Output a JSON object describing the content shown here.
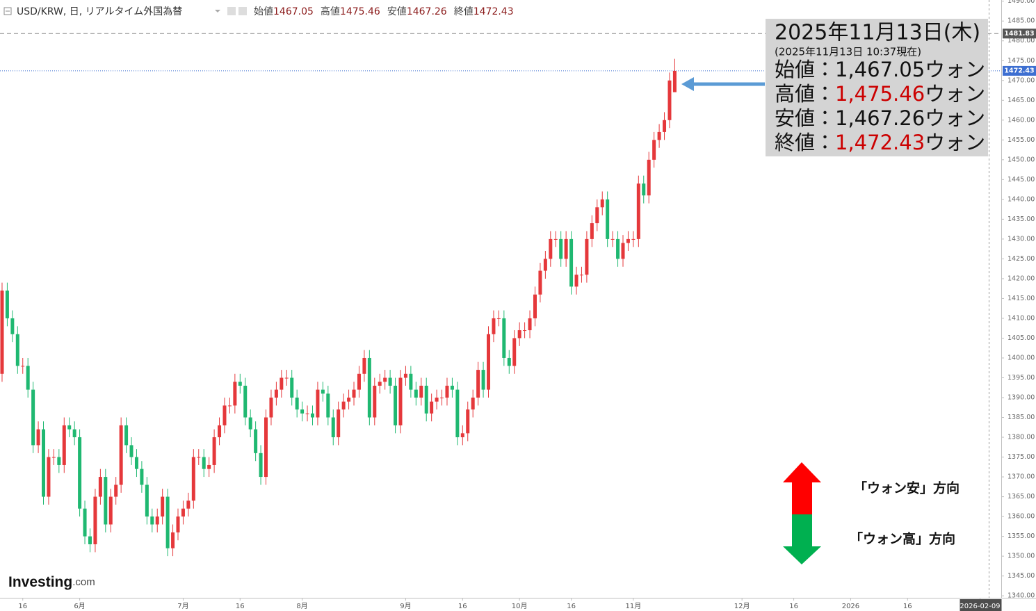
{
  "chart_data": {
    "type": "candlestick",
    "header": {
      "symbol": "USD/KRW, 日, リアルタイム外国為替",
      "ohlc_labels": [
        "始値",
        "高値",
        "安値",
        "終値"
      ]
    },
    "open": [
      1396,
      1417,
      1410,
      1406,
      1398,
      1398,
      1392,
      1378,
      1382,
      1365,
      1375,
      1375,
      1373,
      1383,
      1382,
      1380,
      1362,
      1355,
      1353,
      1365,
      1370,
      1358,
      1365,
      1368,
      1383,
      1378,
      1375,
      1372,
      1368,
      1360,
      1358,
      1360,
      1365,
      1352,
      1356,
      1360,
      1362,
      1364,
      1375,
      1375,
      1372,
      1373,
      1380,
      1383,
      1388,
      1388,
      1394,
      1393,
      1385,
      1382,
      1376,
      1370,
      1385,
      1390,
      1392,
      1395,
      1395,
      1390,
      1387,
      1386,
      1386,
      1385,
      1392,
      1391,
      1385,
      1380,
      1387,
      1389,
      1390,
      1392,
      1396,
      1400,
      1385,
      1393,
      1394,
      1395,
      1393,
      1383,
      1395,
      1396,
      1392,
      1390,
      1393,
      1386,
      1389,
      1390,
      1390,
      1393,
      1392,
      1380,
      1381,
      1387,
      1390,
      1397,
      1392,
      1406,
      1410,
      1410,
      1400,
      1398,
      1405,
      1407,
      1407,
      1410,
      1416,
      1422,
      1425,
      1430,
      1430,
      1425,
      1430,
      1418,
      1421,
      1421,
      1430,
      1434,
      1438,
      1440,
      1430,
      1430,
      1425,
      1429,
      1430,
      1430,
      1444,
      1441,
      1450,
      1455,
      1457,
      1460,
      1467.05
    ],
    "high": [
      1419,
      1419,
      1412,
      1408,
      1400,
      1400,
      1394,
      1384,
      1384,
      1377,
      1377,
      1377,
      1385,
      1385,
      1384,
      1382,
      1364,
      1357,
      1367,
      1372,
      1372,
      1367,
      1370,
      1385,
      1385,
      1380,
      1377,
      1374,
      1370,
      1362,
      1362,
      1367,
      1367,
      1358,
      1362,
      1364,
      1366,
      1377,
      1377,
      1377,
      1375,
      1382,
      1385,
      1390,
      1390,
      1396,
      1396,
      1395,
      1387,
      1384,
      1378,
      1387,
      1392,
      1394,
      1397,
      1397,
      1397,
      1392,
      1389,
      1388,
      1388,
      1394,
      1394,
      1393,
      1387,
      1389,
      1391,
      1392,
      1394,
      1398,
      1402,
      1402,
      1395,
      1396,
      1397,
      1397,
      1395,
      1397,
      1398,
      1398,
      1394,
      1395,
      1395,
      1391,
      1392,
      1392,
      1395,
      1395,
      1394,
      1383,
      1389,
      1392,
      1399,
      1399,
      1408,
      1412,
      1412,
      1412,
      1402,
      1407,
      1409,
      1409,
      1412,
      1418,
      1424,
      1427,
      1432,
      1432,
      1432,
      1432,
      1432,
      1423,
      1423,
      1432,
      1436,
      1440,
      1442,
      1442,
      1432,
      1432,
      1431,
      1432,
      1432,
      1446,
      1446,
      1452,
      1457,
      1459,
      1462,
      1472,
      1475.46
    ],
    "low": [
      1394,
      1408,
      1404,
      1396,
      1396,
      1390,
      1376,
      1376,
      1363,
      1363,
      1373,
      1371,
      1371,
      1380,
      1378,
      1360,
      1353,
      1351,
      1351,
      1363,
      1356,
      1356,
      1363,
      1366,
      1376,
      1373,
      1370,
      1366,
      1358,
      1356,
      1356,
      1358,
      1350,
      1350,
      1354,
      1358,
      1360,
      1362,
      1373,
      1370,
      1370,
      1371,
      1378,
      1381,
      1386,
      1386,
      1391,
      1383,
      1380,
      1374,
      1368,
      1368,
      1383,
      1388,
      1390,
      1393,
      1388,
      1385,
      1384,
      1384,
      1383,
      1383,
      1389,
      1383,
      1378,
      1378,
      1385,
      1387,
      1388,
      1390,
      1394,
      1383,
      1383,
      1391,
      1392,
      1391,
      1381,
      1381,
      1393,
      1390,
      1388,
      1388,
      1384,
      1384,
      1387,
      1388,
      1388,
      1390,
      1378,
      1378,
      1379,
      1385,
      1388,
      1390,
      1390,
      1404,
      1408,
      1398,
      1396,
      1396,
      1403,
      1405,
      1405,
      1408,
      1414,
      1420,
      1423,
      1428,
      1423,
      1423,
      1416,
      1416,
      1419,
      1419,
      1428,
      1432,
      1436,
      1428,
      1428,
      1423,
      1423,
      1427,
      1428,
      1428,
      1439,
      1439,
      1448,
      1453,
      1455,
      1458,
      1467.26
    ],
    "close": [
      1417,
      1410,
      1406,
      1398,
      1398,
      1392,
      1378,
      1382,
      1365,
      1375,
      1375,
      1373,
      1383,
      1382,
      1380,
      1362,
      1355,
      1353,
      1365,
      1370,
      1358,
      1365,
      1368,
      1383,
      1378,
      1375,
      1372,
      1368,
      1360,
      1358,
      1360,
      1365,
      1352,
      1356,
      1360,
      1362,
      1364,
      1375,
      1375,
      1372,
      1373,
      1380,
      1383,
      1388,
      1388,
      1394,
      1393,
      1385,
      1382,
      1376,
      1370,
      1385,
      1390,
      1392,
      1395,
      1395,
      1390,
      1387,
      1386,
      1386,
      1385,
      1392,
      1391,
      1385,
      1380,
      1387,
      1389,
      1390,
      1392,
      1396,
      1400,
      1385,
      1393,
      1394,
      1395,
      1393,
      1383,
      1395,
      1396,
      1392,
      1390,
      1393,
      1386,
      1389,
      1390,
      1390,
      1393,
      1392,
      1380,
      1381,
      1387,
      1390,
      1397,
      1392,
      1406,
      1410,
      1410,
      1400,
      1398,
      1405,
      1407,
      1407,
      1410,
      1416,
      1422,
      1425,
      1430,
      1430,
      1425,
      1430,
      1418,
      1421,
      1421,
      1430,
      1434,
      1438,
      1440,
      1430,
      1430,
      1425,
      1429,
      1430,
      1430,
      1444,
      1441,
      1450,
      1455,
      1457,
      1460,
      1470,
      1472.43
    ],
    "up_color": "#e5383b",
    "down_color": "#1fb871",
    "xlim": [
      -0.4,
      193.1
    ],
    "xticks": [
      {
        "value": 4,
        "label": "16"
      },
      {
        "value": 15,
        "label": "6月"
      },
      {
        "value": 35,
        "label": "7月"
      },
      {
        "value": 46,
        "label": "16"
      },
      {
        "value": 58,
        "label": "8月"
      },
      {
        "value": 78,
        "label": "9月"
      },
      {
        "value": 89,
        "label": "16"
      },
      {
        "value": 100,
        "label": "10月"
      },
      {
        "value": 110,
        "label": "16"
      },
      {
        "value": 122,
        "label": "11月"
      },
      {
        "value": 143,
        "label": "12月"
      },
      {
        "value": 153,
        "label": "16"
      },
      {
        "value": 164,
        "label": "2026"
      },
      {
        "value": 175,
        "label": "16"
      },
      {
        "value": 189,
        "label": "2026-02-09"
      }
    ],
    "ylim": [
      1339.5,
      1490.3
    ],
    "yticks": [
      {
        "value": 1340,
        "label": "1340.00"
      },
      {
        "value": 1345,
        "label": "1345.00"
      },
      {
        "value": 1350,
        "label": "1350.00"
      },
      {
        "value": 1355,
        "label": "1355.00"
      },
      {
        "value": 1360,
        "label": "1360.00"
      },
      {
        "value": 1365,
        "label": "1365.00"
      },
      {
        "value": 1370,
        "label": "1370.00"
      },
      {
        "value": 1375,
        "label": "1375.00"
      },
      {
        "value": 1380,
        "label": "1380.00"
      },
      {
        "value": 1385,
        "label": "1385.00"
      },
      {
        "value": 1390,
        "label": "1390.00"
      },
      {
        "value": 1395,
        "label": "1395.00"
      },
      {
        "value": 1400,
        "label": "1400.00"
      },
      {
        "value": 1405,
        "label": "1405.00"
      },
      {
        "value": 1410,
        "label": "1410.00"
      },
      {
        "value": 1415,
        "label": "1415.00"
      },
      {
        "value": 1420,
        "label": "1420.00"
      },
      {
        "value": 1425,
        "label": "1425.00"
      },
      {
        "value": 1430,
        "label": "1430.00"
      },
      {
        "value": 1435,
        "label": "1435.00"
      },
      {
        "value": 1440,
        "label": "1440.00"
      },
      {
        "value": 1445,
        "label": "1445.00"
      },
      {
        "value": 1450,
        "label": "1450.00"
      },
      {
        "value": 1455,
        "label": "1455.00"
      },
      {
        "value": 1460,
        "label": "1460.00"
      },
      {
        "value": 1465,
        "label": "1465.00"
      },
      {
        "value": 1470,
        "label": "1470.00"
      },
      {
        "value": 1475,
        "label": "1475.00"
      },
      {
        "value": 1480,
        "label": "1480.00"
      },
      {
        "value": 1485,
        "label": "1485.00"
      },
      {
        "value": 1490,
        "label": "1490.00"
      }
    ],
    "grid": false,
    "marker_line": {
      "value": 1481.83,
      "color": "#555555"
    },
    "last_price_color": "#3d6fd1",
    "annotation": {
      "title": "2025年11月13日(木)",
      "subtitle": "(2025年11月13日 10:37現在)",
      "rows": [
        {
          "label": "始値：",
          "value": "1,467.05",
          "unit": "ウォン",
          "color": "#111111"
        },
        {
          "label": "高値：",
          "value": "1,475.46",
          "unit": "ウォン",
          "color": "#cc0000"
        },
        {
          "label": "安値：",
          "value": "1,467.26",
          "unit": "ウォン",
          "color": "#111111"
        },
        {
          "label": "終値：",
          "value": "1,472.43",
          "unit": "ウォン",
          "color": "#cc0000"
        }
      ]
    },
    "direction_labels": [
      "「ウォン安」方向",
      "「ウォン高」方向"
    ],
    "logo": [
      "Investing",
      ".com"
    ]
  }
}
